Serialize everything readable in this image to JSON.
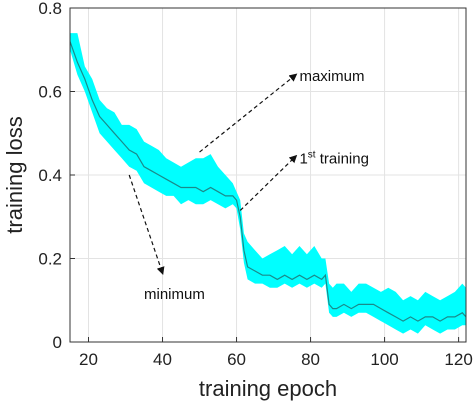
{
  "chart_data": {
    "type": "area",
    "title": "",
    "xlabel": "training epoch",
    "ylabel": "training loss",
    "xlim": [
      15,
      122
    ],
    "ylim": [
      0,
      0.8
    ],
    "xticks": [
      "20",
      "40",
      "60",
      "80",
      "100",
      "120"
    ],
    "yticks": [
      "0",
      "0.2",
      "0.4",
      "0.6",
      "0.8"
    ],
    "grid": true,
    "colors": {
      "band": "#00ffff",
      "line": "#1a8a8a",
      "axis": "#333333"
    },
    "series": [
      {
        "x": [
          15,
          17,
          19,
          21,
          23,
          25,
          27,
          29,
          31,
          33,
          35,
          37,
          39,
          41,
          43,
          45,
          47,
          49,
          51,
          53,
          55,
          57,
          59,
          60,
          61,
          62,
          63,
          65,
          67,
          69,
          71,
          73,
          75,
          77,
          79,
          81,
          83,
          84,
          85,
          86,
          87,
          89,
          91,
          93,
          95,
          97,
          99,
          101,
          103,
          105,
          107,
          109,
          111,
          113,
          115,
          117,
          119,
          121,
          122
        ],
        "mean": [
          0.72,
          0.67,
          0.63,
          0.58,
          0.54,
          0.52,
          0.5,
          0.48,
          0.46,
          0.45,
          0.42,
          0.41,
          0.4,
          0.39,
          0.38,
          0.37,
          0.37,
          0.37,
          0.36,
          0.37,
          0.36,
          0.35,
          0.35,
          0.34,
          0.3,
          0.22,
          0.18,
          0.17,
          0.16,
          0.16,
          0.15,
          0.16,
          0.15,
          0.16,
          0.15,
          0.16,
          0.15,
          0.16,
          0.09,
          0.08,
          0.08,
          0.09,
          0.08,
          0.09,
          0.09,
          0.09,
          0.08,
          0.07,
          0.06,
          0.05,
          0.06,
          0.05,
          0.06,
          0.06,
          0.05,
          0.06,
          0.06,
          0.07,
          0.06
        ],
        "upper": [
          0.74,
          0.74,
          0.66,
          0.63,
          0.58,
          0.56,
          0.55,
          0.52,
          0.52,
          0.51,
          0.48,
          0.47,
          0.46,
          0.44,
          0.43,
          0.42,
          0.43,
          0.44,
          0.44,
          0.45,
          0.42,
          0.4,
          0.38,
          0.36,
          0.34,
          0.26,
          0.24,
          0.22,
          0.2,
          0.21,
          0.22,
          0.23,
          0.21,
          0.23,
          0.21,
          0.23,
          0.2,
          0.2,
          0.14,
          0.13,
          0.14,
          0.14,
          0.12,
          0.14,
          0.14,
          0.13,
          0.12,
          0.13,
          0.12,
          0.1,
          0.11,
          0.1,
          0.12,
          0.11,
          0.1,
          0.11,
          0.12,
          0.14,
          0.13
        ],
        "lower": [
          0.7,
          0.64,
          0.6,
          0.55,
          0.5,
          0.48,
          0.46,
          0.44,
          0.42,
          0.41,
          0.38,
          0.37,
          0.36,
          0.35,
          0.35,
          0.33,
          0.34,
          0.33,
          0.33,
          0.34,
          0.33,
          0.32,
          0.33,
          0.32,
          0.27,
          0.19,
          0.15,
          0.14,
          0.14,
          0.13,
          0.13,
          0.14,
          0.13,
          0.14,
          0.13,
          0.14,
          0.13,
          0.14,
          0.07,
          0.06,
          0.06,
          0.07,
          0.06,
          0.07,
          0.07,
          0.06,
          0.05,
          0.04,
          0.03,
          0.02,
          0.03,
          0.02,
          0.04,
          0.03,
          0.02,
          0.03,
          0.03,
          0.04,
          0.04
        ]
      }
    ],
    "annotations": [
      {
        "label": "maximum",
        "sup": "",
        "suffix": "",
        "from": [
          50,
          0.455
        ],
        "to": [
          76,
          0.64
        ],
        "text_at": [
          77,
          0.637
        ]
      },
      {
        "label": "1",
        "sup": "st",
        "suffix": " training",
        "from": [
          61,
          0.315
        ],
        "to": [
          76,
          0.445
        ],
        "text_at": [
          77,
          0.44
        ]
      },
      {
        "label": "minimum",
        "sup": "",
        "suffix": "",
        "from": [
          31,
          0.4
        ],
        "to": [
          40,
          0.165
        ],
        "text_at": [
          35,
          0.115
        ]
      }
    ]
  }
}
